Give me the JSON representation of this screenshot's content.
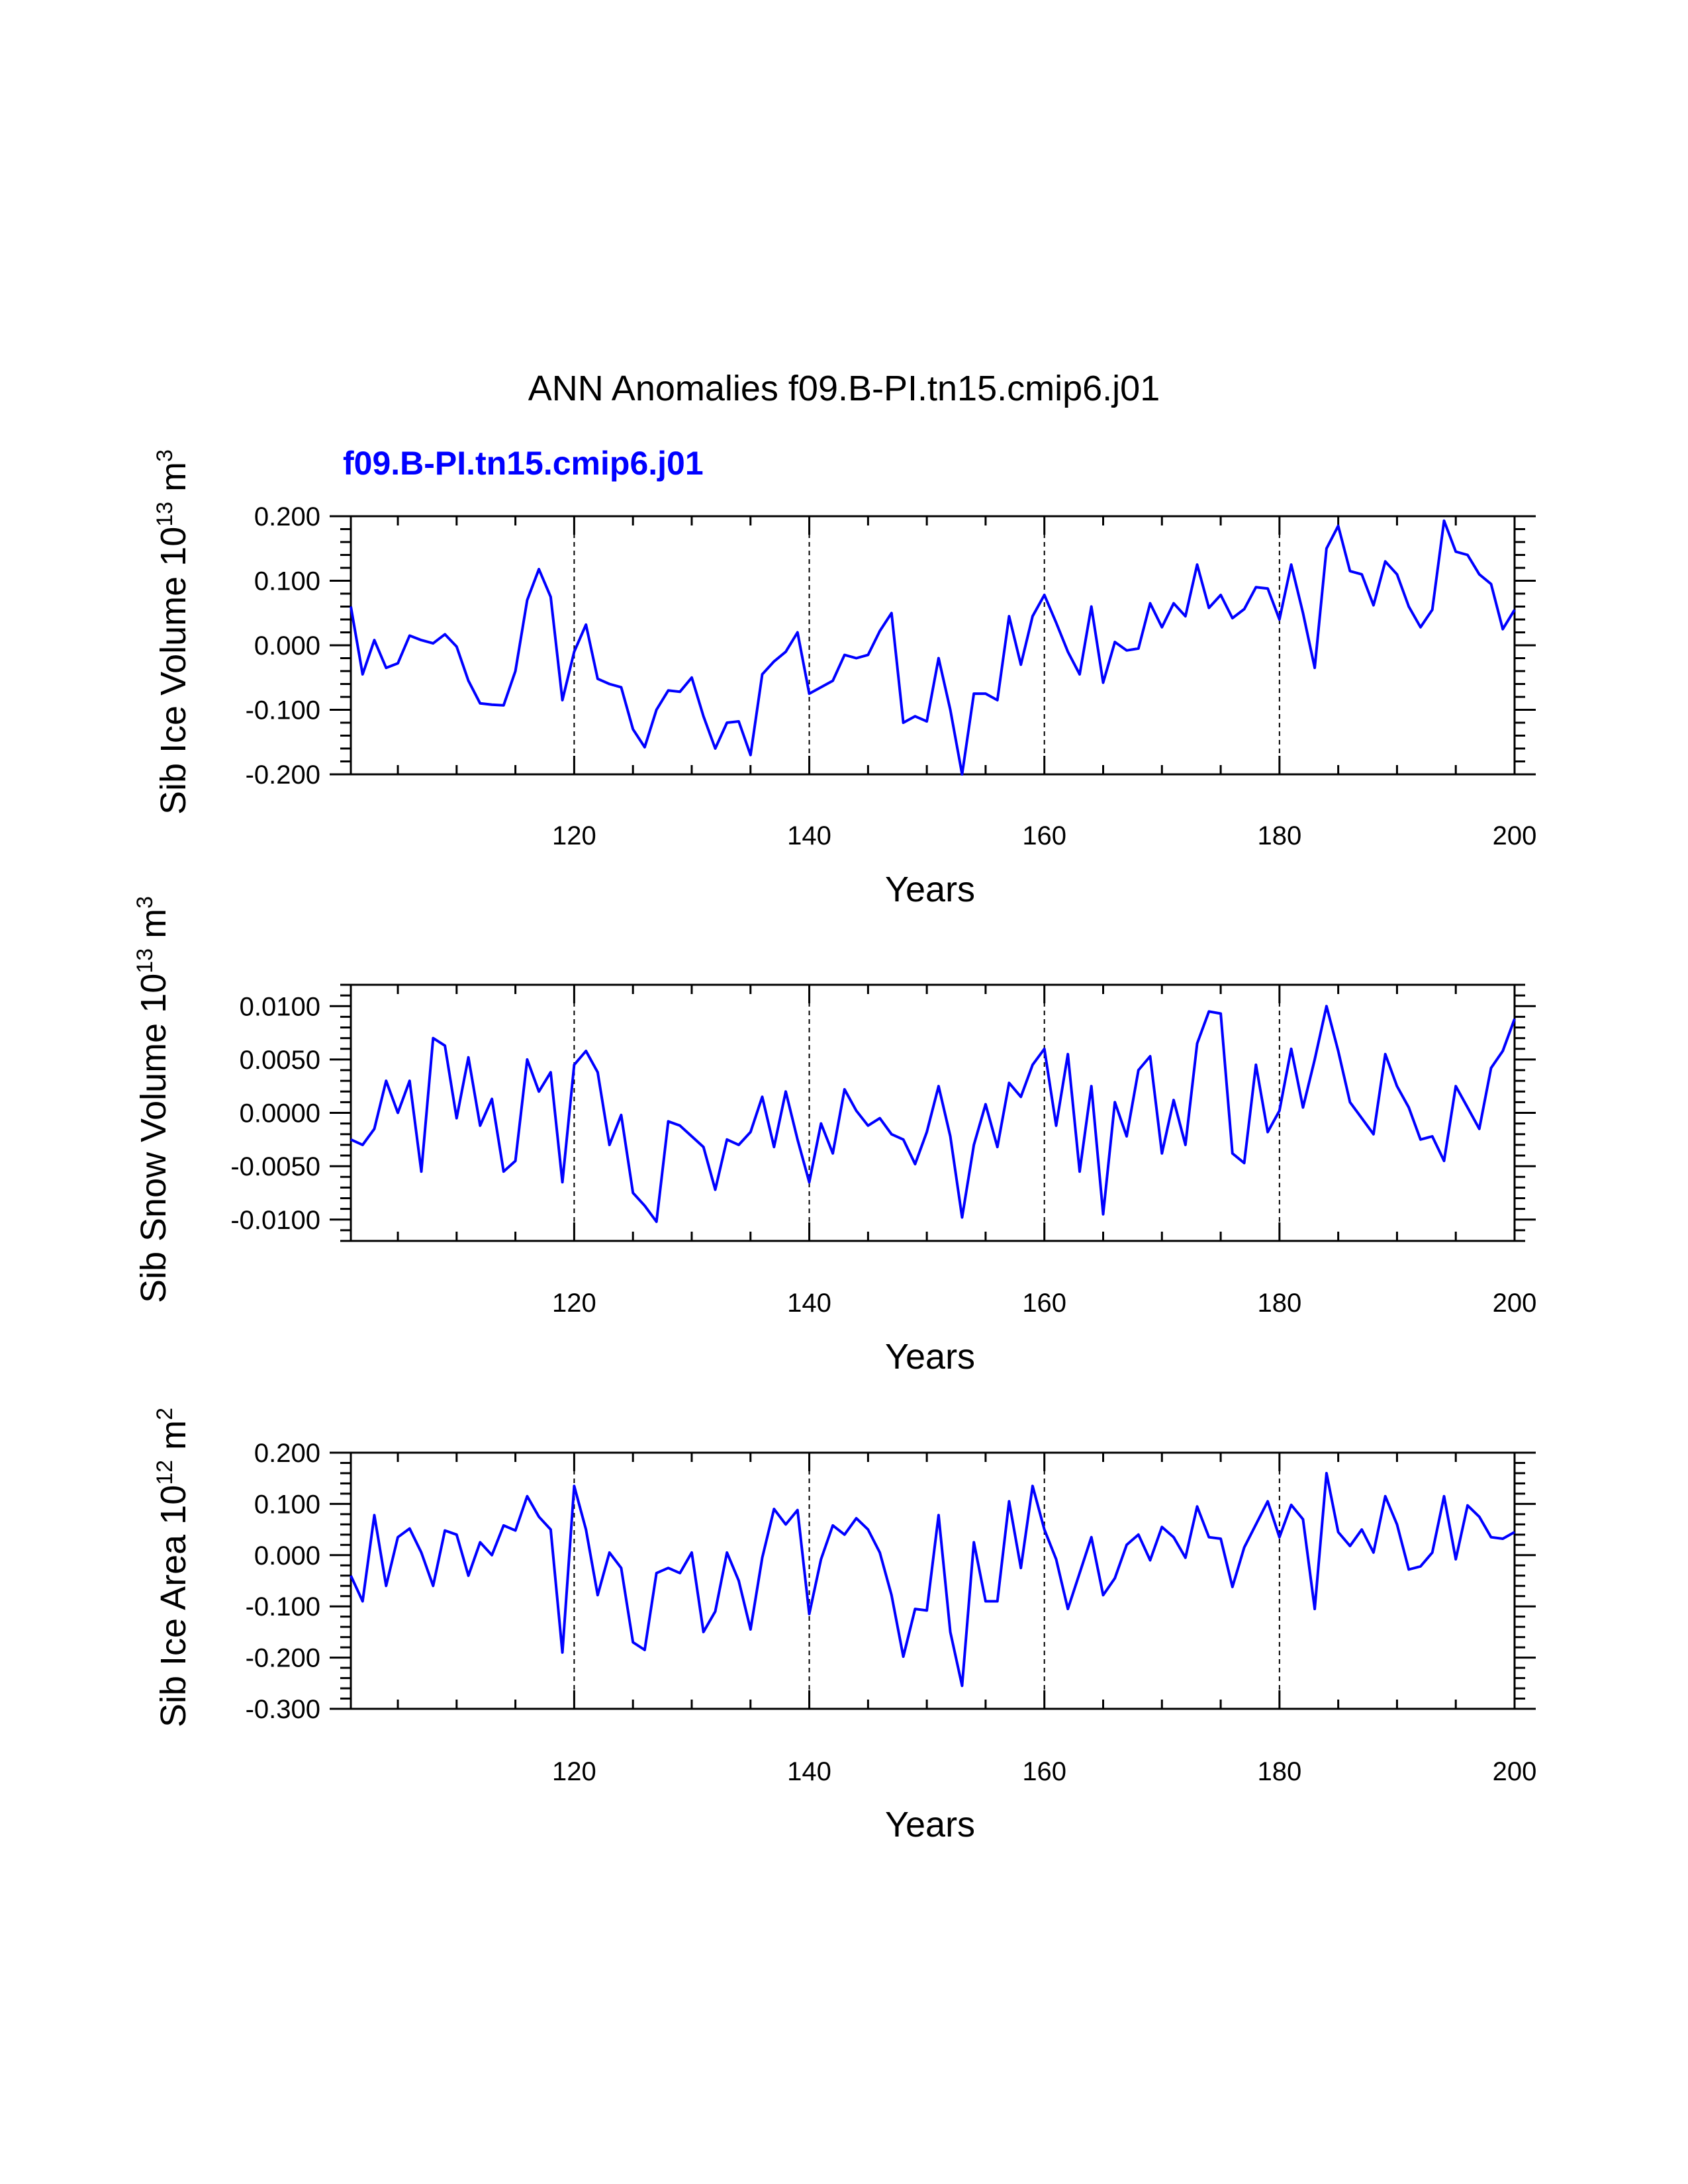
{
  "figure": {
    "title": "ANN Anomalies f09.B-PI.tn15.cmip6.j01",
    "legend_label": "f09.B-PI.tn15.cmip6.j01",
    "line_color": "#0000ff"
  },
  "chart_data": [
    {
      "type": "line",
      "ylabel": "Sib Ice Volume",
      "units": {
        "base": "10",
        "exp": "13",
        "unit": "m",
        "unit_exp": "3"
      },
      "xlabel": "Years",
      "xlim": [
        101,
        200
      ],
      "ylim": [
        -0.2,
        0.2
      ],
      "x_ticks": [
        120,
        140,
        160,
        180,
        200
      ],
      "x_tick_labels": [
        "120",
        "140",
        "160",
        "180",
        "200"
      ],
      "y_ticks": [
        0.2,
        0.1,
        0.0,
        -0.1,
        -0.2
      ],
      "y_tick_labels": [
        "0.200",
        "0.100",
        "0.000",
        "-0.100",
        "-0.200"
      ],
      "grid_x": [
        120,
        140,
        160,
        180
      ],
      "series": [
        {
          "name": "f09.B-PI.tn15.cmip6.j01",
          "x_start": 101,
          "values": [
            0.06,
            -0.045,
            0.008,
            -0.035,
            -0.028,
            0.015,
            0.008,
            0.003,
            0.017,
            -0.002,
            -0.055,
            -0.09,
            -0.092,
            -0.093,
            -0.04,
            0.07,
            0.118,
            0.075,
            -0.085,
            -0.01,
            0.032,
            -0.052,
            -0.06,
            -0.065,
            -0.13,
            -0.158,
            -0.1,
            -0.07,
            -0.072,
            -0.05,
            -0.11,
            -0.16,
            -0.12,
            -0.118,
            -0.17,
            -0.045,
            -0.025,
            -0.01,
            0.02,
            -0.075,
            -0.065,
            -0.055,
            -0.015,
            -0.02,
            -0.015,
            0.022,
            0.05,
            -0.12,
            -0.11,
            -0.118,
            -0.02,
            -0.1,
            -0.2,
            -0.075,
            -0.075,
            -0.085,
            0.045,
            -0.03,
            0.045,
            0.078,
            0.035,
            -0.01,
            -0.045,
            0.06,
            -0.058,
            0.005,
            -0.008,
            -0.005,
            0.065,
            0.028,
            0.065,
            0.045,
            0.125,
            0.058,
            0.078,
            0.042,
            0.056,
            0.09,
            0.088,
            0.04,
            0.125,
            0.05,
            -0.035,
            0.15,
            0.185,
            0.115,
            0.11,
            0.062,
            0.13,
            0.11,
            0.06,
            0.028,
            0.055,
            0.193,
            0.145,
            0.14,
            0.11,
            0.095,
            0.025,
            0.055
          ]
        }
      ]
    },
    {
      "type": "line",
      "ylabel": "Sib Snow Volume",
      "units": {
        "base": "10",
        "exp": "13",
        "unit": "m",
        "unit_exp": "3"
      },
      "xlabel": "Years",
      "xlim": [
        101,
        200
      ],
      "ylim": [
        -0.012,
        0.012
      ],
      "x_ticks": [
        120,
        140,
        160,
        180,
        200
      ],
      "x_tick_labels": [
        "120",
        "140",
        "160",
        "180",
        "200"
      ],
      "y_ticks": [
        0.01,
        0.005,
        0.0,
        -0.005,
        -0.01
      ],
      "y_tick_labels": [
        "0.0100",
        "0.0050",
        "0.0000",
        "-0.0050",
        "-0.0100"
      ],
      "grid_x": [
        120,
        140,
        160,
        180
      ],
      "series": [
        {
          "name": "f09.B-PI.tn15.cmip6.j01",
          "x_start": 101,
          "values": [
            -0.0025,
            -0.003,
            -0.0015,
            0.003,
            0.0,
            0.003,
            -0.0055,
            0.007,
            0.0063,
            -0.0005,
            0.0052,
            -0.0012,
            0.0013,
            -0.0055,
            -0.0045,
            0.005,
            0.002,
            0.0038,
            -0.0065,
            0.0045,
            0.0058,
            0.0038,
            -0.003,
            -0.0002,
            -0.0075,
            -0.0087,
            -0.0102,
            -0.0008,
            -0.0012,
            -0.0022,
            -0.0032,
            -0.0072,
            -0.0025,
            -0.003,
            -0.0018,
            0.0015,
            -0.0032,
            0.002,
            -0.0025,
            -0.0065,
            -0.001,
            -0.0038,
            0.0022,
            0.0002,
            -0.0012,
            -0.0005,
            -0.002,
            -0.0025,
            -0.0048,
            -0.0018,
            0.0025,
            -0.0022,
            -0.0098,
            -0.003,
            0.0008,
            -0.0032,
            0.0028,
            0.0015,
            0.0045,
            0.006,
            -0.0012,
            0.0055,
            -0.0055,
            0.0025,
            -0.0095,
            0.001,
            -0.0022,
            0.004,
            0.0053,
            -0.0038,
            0.0012,
            -0.003,
            0.0065,
            0.0095,
            0.0093,
            -0.0038,
            -0.0047,
            0.0045,
            -0.0018,
            0.0002,
            0.006,
            0.0005,
            0.005,
            0.01,
            0.0058,
            0.001,
            -0.0005,
            -0.002,
            0.0055,
            0.0025,
            0.0005,
            -0.0025,
            -0.0022,
            -0.0045,
            0.0025,
            0.0005,
            -0.0015,
            0.0042,
            0.0058,
            0.0088
          ]
        }
      ]
    },
    {
      "type": "line",
      "ylabel": "Sib Ice Area",
      "units": {
        "base": "10",
        "exp": "12",
        "unit": "m",
        "unit_exp": "2"
      },
      "xlabel": "Years",
      "xlim": [
        101,
        200
      ],
      "ylim": [
        -0.3,
        0.2
      ],
      "x_ticks": [
        120,
        140,
        160,
        180,
        200
      ],
      "x_tick_labels": [
        "120",
        "140",
        "160",
        "180",
        "200"
      ],
      "y_ticks": [
        0.2,
        0.1,
        0.0,
        -0.1,
        -0.2,
        -0.3
      ],
      "y_tick_labels": [
        "0.200",
        "0.100",
        "0.000",
        "-0.100",
        "-0.200",
        "-0.300"
      ],
      "grid_x": [
        120,
        140,
        160,
        180
      ],
      "series": [
        {
          "name": "f09.B-PI.tn15.cmip6.j01",
          "x_start": 101,
          "values": [
            -0.04,
            -0.09,
            0.078,
            -0.06,
            0.035,
            0.052,
            0.005,
            -0.06,
            0.048,
            0.04,
            -0.04,
            0.025,
            0.0,
            0.058,
            0.048,
            0.115,
            0.075,
            0.05,
            -0.19,
            0.135,
            0.05,
            -0.078,
            0.005,
            -0.025,
            -0.17,
            -0.185,
            -0.035,
            -0.025,
            -0.035,
            0.005,
            -0.15,
            -0.11,
            0.005,
            -0.05,
            -0.145,
            -0.005,
            0.09,
            0.06,
            0.088,
            -0.115,
            -0.008,
            0.058,
            0.04,
            0.072,
            0.05,
            0.005,
            -0.078,
            -0.198,
            -0.105,
            -0.108,
            0.078,
            -0.15,
            -0.255,
            0.025,
            -0.09,
            -0.09,
            0.105,
            -0.025,
            0.135,
            0.05,
            -0.008,
            -0.105,
            -0.035,
            0.035,
            -0.078,
            -0.045,
            0.02,
            0.04,
            -0.01,
            0.055,
            0.035,
            -0.005,
            0.095,
            0.035,
            0.032,
            -0.062,
            0.015,
            0.06,
            0.105,
            0.035,
            0.098,
            0.07,
            -0.105,
            0.16,
            0.045,
            0.018,
            0.05,
            0.005,
            0.115,
            0.06,
            -0.028,
            -0.022,
            0.005,
            0.115,
            -0.008,
            0.097,
            0.075,
            0.035,
            0.032,
            0.045
          ]
        }
      ]
    }
  ]
}
